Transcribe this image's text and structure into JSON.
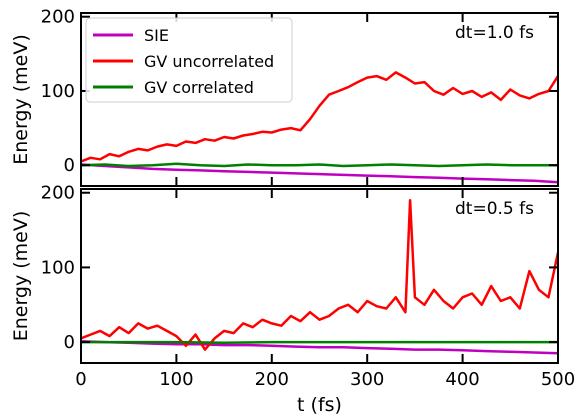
{
  "chart_data": [
    {
      "type": "line",
      "annotation": "dt=1.0 fs",
      "ylabel": "Energy (meV)",
      "xlim": [
        0,
        500
      ],
      "ylim": [
        -28,
        205
      ],
      "yticks": [
        0,
        100,
        200
      ],
      "ytick_labels": [
        "0",
        "100",
        "200"
      ],
      "legend": {
        "position": "top-left",
        "entries": [
          {
            "label": "SIE",
            "color": "#c000c0"
          },
          {
            "label": "GV uncorrelated",
            "color": "#ff0000"
          },
          {
            "label": "GV correlated",
            "color": "#008000"
          }
        ]
      },
      "series": [
        {
          "name": "SIE",
          "color": "#c000c0",
          "x": [
            0,
            25,
            50,
            75,
            100,
            125,
            150,
            175,
            200,
            225,
            250,
            275,
            300,
            325,
            350,
            375,
            400,
            425,
            450,
            475,
            500
          ],
          "y": [
            1,
            -1,
            -3,
            -5,
            -6,
            -7,
            -8,
            -9,
            -10,
            -11,
            -12,
            -13,
            -14,
            -15,
            -16,
            -17,
            -18,
            -19,
            -20,
            -21,
            -23
          ]
        },
        {
          "name": "GV uncorrelated",
          "color": "#ff0000",
          "x": [
            0,
            10,
            20,
            30,
            40,
            50,
            60,
            70,
            80,
            90,
            100,
            110,
            120,
            130,
            140,
            150,
            160,
            170,
            180,
            190,
            200,
            210,
            220,
            230,
            240,
            250,
            260,
            270,
            280,
            290,
            300,
            310,
            320,
            330,
            340,
            350,
            360,
            370,
            380,
            390,
            400,
            410,
            420,
            430,
            440,
            450,
            460,
            470,
            480,
            490,
            500
          ],
          "y": [
            5,
            10,
            8,
            15,
            12,
            18,
            22,
            20,
            25,
            28,
            26,
            32,
            30,
            35,
            33,
            38,
            36,
            40,
            42,
            45,
            44,
            48,
            50,
            47,
            62,
            80,
            95,
            100,
            105,
            112,
            118,
            120,
            115,
            125,
            118,
            110,
            112,
            100,
            95,
            104,
            96,
            100,
            92,
            98,
            88,
            102,
            94,
            90,
            96,
            100,
            120
          ]
        },
        {
          "name": "GV correlated",
          "color": "#008000",
          "x": [
            0,
            25,
            50,
            75,
            100,
            125,
            150,
            175,
            200,
            225,
            250,
            275,
            300,
            325,
            350,
            375,
            400,
            425,
            450,
            475,
            500
          ],
          "y": [
            0,
            1,
            -1,
            0,
            2,
            0,
            -1,
            1,
            0,
            0,
            1,
            -1,
            0,
            1,
            0,
            -1,
            0,
            1,
            0,
            0,
            0
          ]
        }
      ]
    },
    {
      "type": "line",
      "annotation": "dt=0.5 fs",
      "xlabel": "t (fs)",
      "ylabel": "Energy (meV)",
      "xlim": [
        0,
        500
      ],
      "ylim": [
        -28,
        205
      ],
      "xticks": [
        0,
        100,
        200,
        300,
        400,
        500
      ],
      "xtick_labels": [
        "0",
        "100",
        "200",
        "300",
        "400",
        "500"
      ],
      "yticks": [
        0,
        100,
        200
      ],
      "ytick_labels": [
        "0",
        "100",
        "200"
      ],
      "series": [
        {
          "name": "SIE",
          "color": "#c000c0",
          "x": [
            0,
            25,
            50,
            75,
            100,
            125,
            150,
            175,
            200,
            225,
            250,
            275,
            300,
            325,
            350,
            375,
            400,
            425,
            450,
            475,
            500
          ],
          "y": [
            1,
            0,
            -1,
            -2,
            -3,
            -3,
            -4,
            -4,
            -5,
            -6,
            -7,
            -7,
            -8,
            -9,
            -10,
            -10,
            -11,
            -12,
            -13,
            -14,
            -15
          ]
        },
        {
          "name": "GV uncorrelated",
          "color": "#ff0000",
          "x": [
            0,
            10,
            20,
            30,
            40,
            50,
            60,
            70,
            80,
            90,
            100,
            110,
            120,
            130,
            140,
            150,
            160,
            170,
            180,
            190,
            200,
            210,
            220,
            230,
            240,
            250,
            260,
            270,
            280,
            290,
            300,
            310,
            320,
            330,
            340,
            345,
            350,
            360,
            370,
            380,
            390,
            400,
            410,
            420,
            430,
            440,
            450,
            460,
            470,
            480,
            490,
            500
          ],
          "y": [
            5,
            10,
            15,
            8,
            20,
            12,
            25,
            18,
            22,
            15,
            8,
            -5,
            10,
            -10,
            5,
            15,
            12,
            25,
            20,
            30,
            25,
            22,
            35,
            28,
            40,
            30,
            35,
            45,
            50,
            40,
            55,
            48,
            45,
            60,
            40,
            190,
            60,
            50,
            70,
            55,
            45,
            60,
            65,
            50,
            75,
            55,
            60,
            45,
            95,
            70,
            60,
            120
          ]
        },
        {
          "name": "GV correlated",
          "color": "#008000",
          "x": [
            0,
            50,
            100,
            150,
            200,
            250,
            300,
            350,
            400,
            450,
            500
          ],
          "y": [
            0,
            0,
            0,
            -1,
            0,
            0,
            0,
            0,
            0,
            0,
            0
          ]
        }
      ]
    }
  ]
}
